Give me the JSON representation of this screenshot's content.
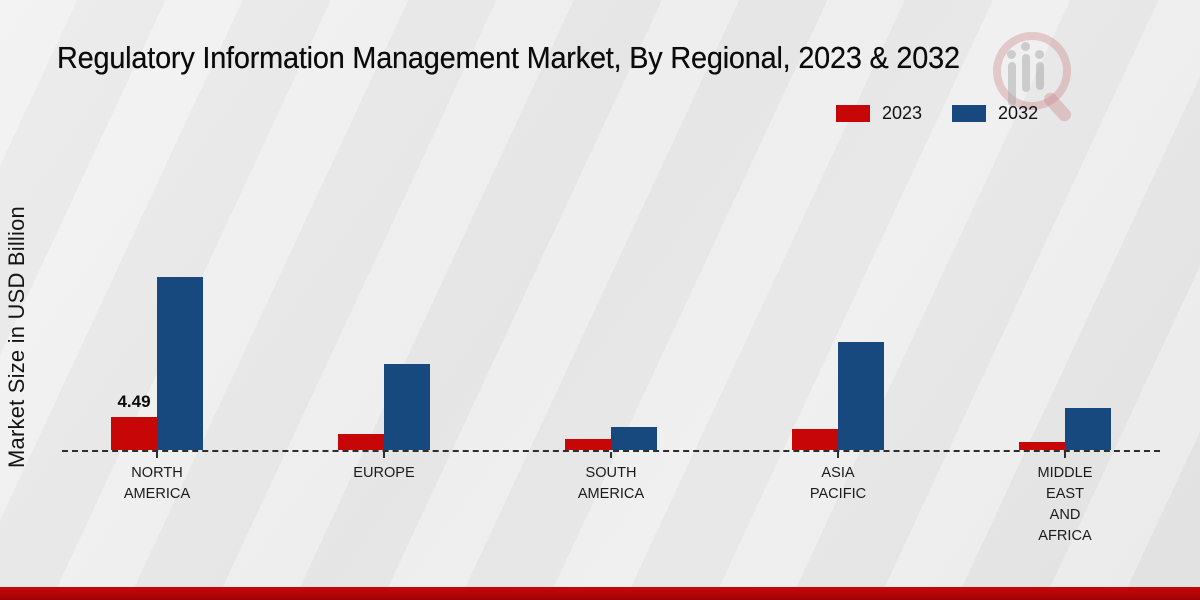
{
  "title": "Regulatory Information Management Market, By Regional, 2023 & 2032",
  "y_axis_label": "Market Size in USD Billion",
  "legend": {
    "items": [
      {
        "label": "2023",
        "color": "#c70707"
      },
      {
        "label": "2032",
        "color": "#17497f"
      }
    ]
  },
  "colors": {
    "bar_2023": "#c70707",
    "bar_2032": "#17497f",
    "baseline": "#2e2e2e",
    "bottom_band": "#b10504",
    "background": "#eaeaea"
  },
  "watermark": {
    "name": "market-research-future-logo"
  },
  "chart_data": {
    "type": "bar",
    "title": "Regulatory Information Management Market, By Regional, 2023 & 2032",
    "categories": [
      "North America",
      "Europe",
      "South America",
      "Asia Pacific",
      "Middle East and Africa"
    ],
    "category_label_lines": [
      [
        "NORTH",
        "AMERICA"
      ],
      [
        "EUROPE"
      ],
      [
        "SOUTH",
        "AMERICA"
      ],
      [
        "ASIA",
        "PACIFIC"
      ],
      [
        "MIDDLE",
        "EAST",
        "AND",
        "AFRICA"
      ]
    ],
    "series": [
      {
        "name": "2023",
        "color": "#c70707",
        "values": [
          4.49,
          2.2,
          1.45,
          2.76,
          1.1
        ]
      },
      {
        "name": "2032",
        "color": "#17497f",
        "values": [
          23.3,
          11.5,
          3.05,
          14.45,
          5.7
        ]
      }
    ],
    "data_labels": [
      {
        "series_index": 0,
        "category_index": 0,
        "text": "4.49"
      }
    ],
    "xlabel": "",
    "ylabel": "Market Size in USD Billion",
    "ylim": [
      0,
      25
    ],
    "grid": false,
    "y_axis_ticks_visible": false,
    "baseline_style": "dashed",
    "legend_position": "top-right"
  }
}
